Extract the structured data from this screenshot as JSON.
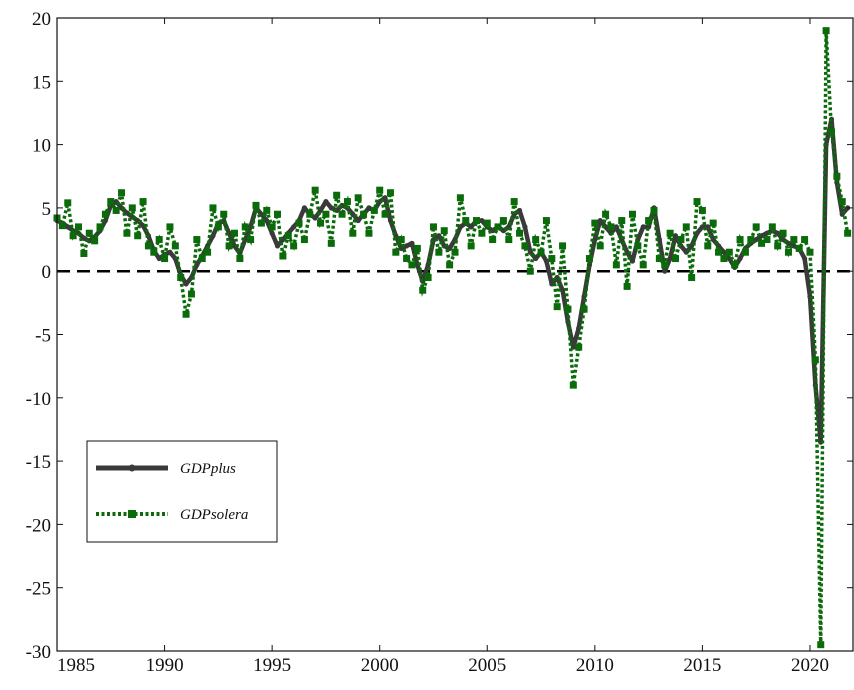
{
  "chart_data": {
    "type": "line",
    "xlim": [
      1985,
      2022
    ],
    "ylim": [
      -30,
      20
    ],
    "x_ticks": [
      1985,
      1990,
      1995,
      2000,
      2005,
      2010,
      2015,
      2020
    ],
    "y_ticks": [
      20,
      15,
      10,
      5,
      0,
      -5,
      -10,
      -15,
      -20,
      -25,
      -30
    ],
    "x_tick_labels": [
      "1985",
      "1990",
      "1995",
      "2000",
      "2005",
      "2010",
      "2015",
      "2020"
    ],
    "y_tick_labels": [
      "20",
      "15",
      "10",
      "5",
      "0",
      "-5",
      "-10",
      "-15",
      "-20",
      "-25",
      "-30"
    ],
    "reference_line": {
      "y": 0,
      "style": "dashed",
      "color": "#000000"
    },
    "legend": {
      "placement": "lower-left",
      "entries": [
        "GDPplus",
        "GDPsolera"
      ]
    },
    "grid": false,
    "series": [
      {
        "name": "GDPplus",
        "color": "#3a3a3a",
        "style": "solid",
        "marker": "circle",
        "points": [
          [
            1985.0,
            4.0
          ],
          [
            1985.25,
            3.8
          ],
          [
            1985.5,
            3.5
          ],
          [
            1985.75,
            3.2
          ],
          [
            1986.0,
            3.0
          ],
          [
            1986.25,
            2.6
          ],
          [
            1986.5,
            2.4
          ],
          [
            1986.75,
            2.7
          ],
          [
            1987.0,
            3.2
          ],
          [
            1987.25,
            4.0
          ],
          [
            1987.5,
            5.2
          ],
          [
            1987.75,
            5.5
          ],
          [
            1988.0,
            5.0
          ],
          [
            1988.25,
            4.6
          ],
          [
            1988.5,
            4.3
          ],
          [
            1988.75,
            4.0
          ],
          [
            1989.0,
            3.6
          ],
          [
            1989.25,
            2.8
          ],
          [
            1989.5,
            1.6
          ],
          [
            1989.75,
            1.0
          ],
          [
            1990.0,
            1.3
          ],
          [
            1990.25,
            1.5
          ],
          [
            1990.5,
            1.0
          ],
          [
            1990.75,
            -0.3
          ],
          [
            1991.0,
            -1.0
          ],
          [
            1991.25,
            -0.5
          ],
          [
            1991.5,
            0.5
          ],
          [
            1991.75,
            1.2
          ],
          [
            1992.0,
            2.0
          ],
          [
            1992.25,
            2.8
          ],
          [
            1992.5,
            3.8
          ],
          [
            1992.75,
            4.0
          ],
          [
            1993.0,
            3.0
          ],
          [
            1993.25,
            2.0
          ],
          [
            1993.5,
            1.4
          ],
          [
            1993.75,
            2.5
          ],
          [
            1994.0,
            3.5
          ],
          [
            1994.25,
            5.0
          ],
          [
            1994.5,
            4.5
          ],
          [
            1994.75,
            4.0
          ],
          [
            1995.0,
            3.0
          ],
          [
            1995.25,
            2.0
          ],
          [
            1995.5,
            2.5
          ],
          [
            1995.75,
            3.0
          ],
          [
            1996.0,
            3.5
          ],
          [
            1996.25,
            4.0
          ],
          [
            1996.5,
            5.0
          ],
          [
            1996.75,
            4.5
          ],
          [
            1997.0,
            4.2
          ],
          [
            1997.25,
            4.8
          ],
          [
            1997.5,
            5.5
          ],
          [
            1997.75,
            5.0
          ],
          [
            1998.0,
            4.8
          ],
          [
            1998.25,
            5.2
          ],
          [
            1998.5,
            5.0
          ],
          [
            1998.75,
            4.5
          ],
          [
            1999.0,
            4.0
          ],
          [
            1999.25,
            4.5
          ],
          [
            1999.5,
            5.0
          ],
          [
            1999.75,
            4.8
          ],
          [
            2000.0,
            5.5
          ],
          [
            2000.25,
            5.8
          ],
          [
            2000.5,
            4.0
          ],
          [
            2000.75,
            2.8
          ],
          [
            2001.0,
            1.8
          ],
          [
            2001.25,
            2.0
          ],
          [
            2001.5,
            2.2
          ],
          [
            2001.75,
            0.5
          ],
          [
            2002.0,
            -0.8
          ],
          [
            2002.25,
            0.5
          ],
          [
            2002.5,
            2.5
          ],
          [
            2002.75,
            2.8
          ],
          [
            2003.0,
            2.0
          ],
          [
            2003.25,
            1.8
          ],
          [
            2003.5,
            2.5
          ],
          [
            2003.75,
            3.5
          ],
          [
            2004.0,
            3.8
          ],
          [
            2004.25,
            3.5
          ],
          [
            2004.5,
            4.0
          ],
          [
            2004.75,
            4.0
          ],
          [
            2005.0,
            3.5
          ],
          [
            2005.25,
            3.2
          ],
          [
            2005.5,
            3.5
          ],
          [
            2005.75,
            3.2
          ],
          [
            2006.0,
            3.5
          ],
          [
            2006.25,
            4.5
          ],
          [
            2006.5,
            4.8
          ],
          [
            2006.75,
            3.5
          ],
          [
            2007.0,
            1.5
          ],
          [
            2007.25,
            1.0
          ],
          [
            2007.5,
            1.5
          ],
          [
            2007.75,
            0.8
          ],
          [
            2008.0,
            -1.0
          ],
          [
            2008.25,
            -0.5
          ],
          [
            2008.5,
            -1.5
          ],
          [
            2008.75,
            -4.0
          ],
          [
            2009.0,
            -6.0
          ],
          [
            2009.25,
            -4.5
          ],
          [
            2009.5,
            -2.0
          ],
          [
            2009.75,
            0.5
          ],
          [
            2010.0,
            2.5
          ],
          [
            2010.25,
            4.0
          ],
          [
            2010.5,
            3.5
          ],
          [
            2010.75,
            3.0
          ],
          [
            2011.0,
            3.5
          ],
          [
            2011.25,
            2.5
          ],
          [
            2011.5,
            1.5
          ],
          [
            2011.75,
            0.8
          ],
          [
            2012.0,
            2.5
          ],
          [
            2012.25,
            3.5
          ],
          [
            2012.5,
            3.5
          ],
          [
            2012.75,
            5.0
          ],
          [
            2013.0,
            2.5
          ],
          [
            2013.25,
            0.0
          ],
          [
            2013.5,
            1.0
          ],
          [
            2013.75,
            2.8
          ],
          [
            2014.0,
            2.0
          ],
          [
            2014.25,
            1.5
          ],
          [
            2014.5,
            2.0
          ],
          [
            2014.75,
            3.0
          ],
          [
            2015.0,
            3.5
          ],
          [
            2015.25,
            3.5
          ],
          [
            2015.5,
            2.5
          ],
          [
            2015.75,
            2.0
          ],
          [
            2016.0,
            1.5
          ],
          [
            2016.25,
            1.0
          ],
          [
            2016.5,
            0.3
          ],
          [
            2016.75,
            1.0
          ],
          [
            2017.0,
            1.8
          ],
          [
            2017.25,
            2.2
          ],
          [
            2017.5,
            2.5
          ],
          [
            2017.75,
            2.8
          ],
          [
            2018.0,
            3.0
          ],
          [
            2018.25,
            3.2
          ],
          [
            2018.5,
            3.0
          ],
          [
            2018.75,
            2.5
          ],
          [
            2019.0,
            2.2
          ],
          [
            2019.25,
            2.0
          ],
          [
            2019.5,
            1.8
          ],
          [
            2019.75,
            1.0
          ],
          [
            2020.0,
            -2.0
          ],
          [
            2020.25,
            -9.0
          ],
          [
            2020.5,
            -13.5
          ],
          [
            2020.75,
            10.0
          ],
          [
            2021.0,
            12.0
          ],
          [
            2021.25,
            7.0
          ],
          [
            2021.5,
            4.5
          ],
          [
            2021.75,
            5.0
          ]
        ]
      },
      {
        "name": "GDPsolera",
        "color": "#0b6b0b",
        "style": "dotted",
        "marker": "square",
        "points": [
          [
            1985.0,
            4.2
          ],
          [
            1985.25,
            3.6
          ],
          [
            1985.5,
            5.4
          ],
          [
            1985.75,
            2.8
          ],
          [
            1986.0,
            3.5
          ],
          [
            1986.25,
            1.4
          ],
          [
            1986.5,
            3.0
          ],
          [
            1986.75,
            2.4
          ],
          [
            1987.0,
            3.5
          ],
          [
            1987.25,
            4.5
          ],
          [
            1987.5,
            5.5
          ],
          [
            1987.75,
            4.8
          ],
          [
            1988.0,
            6.2
          ],
          [
            1988.25,
            3.0
          ],
          [
            1988.5,
            5.0
          ],
          [
            1988.75,
            2.8
          ],
          [
            1989.0,
            5.5
          ],
          [
            1989.25,
            2.0
          ],
          [
            1989.5,
            1.5
          ],
          [
            1989.75,
            2.5
          ],
          [
            1990.0,
            1.0
          ],
          [
            1990.25,
            3.5
          ],
          [
            1990.5,
            2.0
          ],
          [
            1990.75,
            -0.5
          ],
          [
            1991.0,
            -3.4
          ],
          [
            1991.25,
            -1.8
          ],
          [
            1991.5,
            2.5
          ],
          [
            1991.75,
            1.0
          ],
          [
            1992.0,
            1.5
          ],
          [
            1992.25,
            5.0
          ],
          [
            1992.5,
            3.5
          ],
          [
            1992.75,
            4.5
          ],
          [
            1993.0,
            2.0
          ],
          [
            1993.25,
            3.0
          ],
          [
            1993.5,
            1.0
          ],
          [
            1993.75,
            3.5
          ],
          [
            1994.0,
            2.5
          ],
          [
            1994.25,
            5.2
          ],
          [
            1994.5,
            3.8
          ],
          [
            1994.75,
            4.8
          ],
          [
            1995.0,
            3.5
          ],
          [
            1995.25,
            4.5
          ],
          [
            1995.5,
            1.2
          ],
          [
            1995.75,
            2.8
          ],
          [
            1996.0,
            2.0
          ],
          [
            1996.25,
            3.8
          ],
          [
            1996.5,
            2.5
          ],
          [
            1996.75,
            4.5
          ],
          [
            1997.0,
            6.4
          ],
          [
            1997.25,
            3.8
          ],
          [
            1997.5,
            4.5
          ],
          [
            1997.75,
            2.2
          ],
          [
            1998.0,
            6.0
          ],
          [
            1998.25,
            4.5
          ],
          [
            1998.5,
            5.5
          ],
          [
            1998.75,
            3.0
          ],
          [
            1999.0,
            5.8
          ],
          [
            1999.25,
            4.5
          ],
          [
            1999.5,
            3.0
          ],
          [
            1999.75,
            4.8
          ],
          [
            2000.0,
            6.4
          ],
          [
            2000.25,
            4.5
          ],
          [
            2000.5,
            6.2
          ],
          [
            2000.75,
            1.5
          ],
          [
            2001.0,
            2.5
          ],
          [
            2001.25,
            1.0
          ],
          [
            2001.5,
            0.5
          ],
          [
            2001.75,
            1.8
          ],
          [
            2002.0,
            -1.5
          ],
          [
            2002.25,
            -0.5
          ],
          [
            2002.5,
            3.5
          ],
          [
            2002.75,
            1.5
          ],
          [
            2003.0,
            3.2
          ],
          [
            2003.25,
            0.5
          ],
          [
            2003.5,
            1.5
          ],
          [
            2003.75,
            5.8
          ],
          [
            2004.0,
            4.0
          ],
          [
            2004.25,
            2.0
          ],
          [
            2004.5,
            4.0
          ],
          [
            2004.75,
            3.0
          ],
          [
            2005.0,
            3.8
          ],
          [
            2005.25,
            2.5
          ],
          [
            2005.5,
            3.5
          ],
          [
            2005.75,
            4.0
          ],
          [
            2006.0,
            2.5
          ],
          [
            2006.25,
            5.5
          ],
          [
            2006.5,
            3.0
          ],
          [
            2006.75,
            2.0
          ],
          [
            2007.0,
            0.0
          ],
          [
            2007.25,
            2.5
          ],
          [
            2007.5,
            1.5
          ],
          [
            2007.75,
            4.0
          ],
          [
            2008.0,
            1.0
          ],
          [
            2008.25,
            -2.8
          ],
          [
            2008.5,
            2.0
          ],
          [
            2008.75,
            -3.0
          ],
          [
            2009.0,
            -9.0
          ],
          [
            2009.25,
            -6.0
          ],
          [
            2009.5,
            -3.0
          ],
          [
            2009.75,
            1.0
          ],
          [
            2010.0,
            3.8
          ],
          [
            2010.25,
            2.0
          ],
          [
            2010.5,
            4.5
          ],
          [
            2010.75,
            3.5
          ],
          [
            2011.0,
            0.5
          ],
          [
            2011.25,
            4.0
          ],
          [
            2011.5,
            -1.2
          ],
          [
            2011.75,
            4.5
          ],
          [
            2012.0,
            2.0
          ],
          [
            2012.25,
            0.5
          ],
          [
            2012.5,
            4.0
          ],
          [
            2012.75,
            4.8
          ],
          [
            2013.0,
            1.0
          ],
          [
            2013.25,
            0.5
          ],
          [
            2013.5,
            3.0
          ],
          [
            2013.75,
            1.0
          ],
          [
            2014.0,
            2.5
          ],
          [
            2014.25,
            3.5
          ],
          [
            2014.5,
            -0.5
          ],
          [
            2014.75,
            5.5
          ],
          [
            2015.0,
            4.8
          ],
          [
            2015.25,
            2.0
          ],
          [
            2015.5,
            3.8
          ],
          [
            2015.75,
            1.5
          ],
          [
            2016.0,
            1.0
          ],
          [
            2016.25,
            1.5
          ],
          [
            2016.5,
            0.5
          ],
          [
            2016.75,
            2.5
          ],
          [
            2017.0,
            1.5
          ],
          [
            2017.25,
            2.5
          ],
          [
            2017.5,
            3.5
          ],
          [
            2017.75,
            2.2
          ],
          [
            2018.0,
            2.5
          ],
          [
            2018.25,
            3.5
          ],
          [
            2018.5,
            2.0
          ],
          [
            2018.75,
            3.0
          ],
          [
            2019.0,
            1.5
          ],
          [
            2019.25,
            2.5
          ],
          [
            2019.5,
            1.8
          ],
          [
            2019.75,
            2.5
          ],
          [
            2020.0,
            1.5
          ],
          [
            2020.25,
            -7.0
          ],
          [
            2020.5,
            -29.5
          ],
          [
            2020.75,
            19.0
          ],
          [
            2021.0,
            11.0
          ],
          [
            2021.25,
            7.5
          ],
          [
            2021.5,
            5.5
          ],
          [
            2021.75,
            3.0
          ]
        ]
      }
    ]
  }
}
